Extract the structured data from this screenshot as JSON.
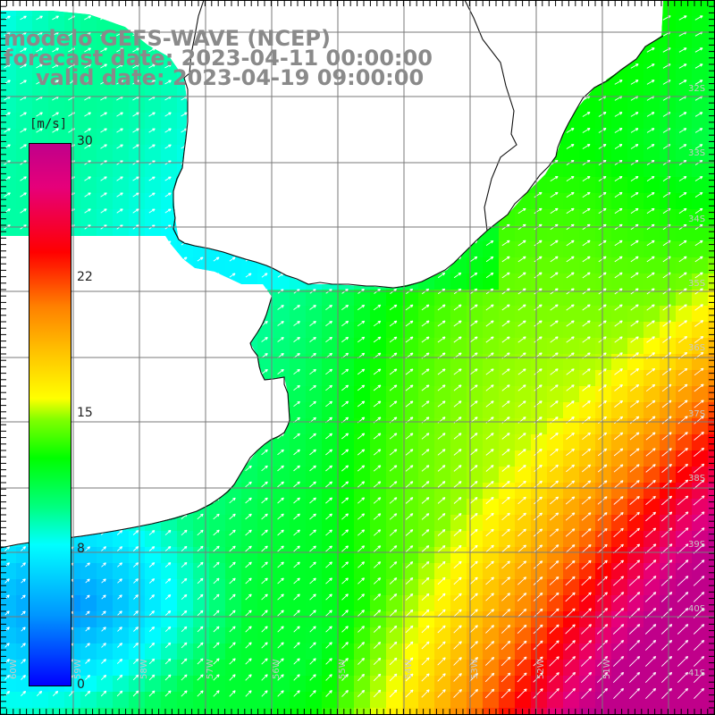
{
  "titles": {
    "line1": "modelo GEFS-WAVE (NCEP)",
    "line2": "forecast date: 2023-04-11 00:00:00",
    "line3": "valid date: 2023-04-19 09:00:00"
  },
  "colorbar": {
    "unit": "[m/s]",
    "ticks": [
      "30",
      "22",
      "15",
      "8",
      "0"
    ],
    "range": [
      0,
      30
    ],
    "colors": [
      "#0000ff",
      "#00ffff",
      "#00ff00",
      "#ffff00",
      "#ff0000",
      "#c0008a"
    ]
  },
  "grid": {
    "lat_labels": [
      "32S",
      "33S",
      "34S",
      "35S",
      "36S",
      "37S",
      "38S",
      "39S",
      "40S",
      "41S"
    ],
    "lon_labels": [
      "60W",
      "59W",
      "58W",
      "57W",
      "56W",
      "55W",
      "54W",
      "53W",
      "52W",
      "51W"
    ]
  },
  "field": {
    "variable": "wind speed",
    "max_region": "bottom-right",
    "min_region": "bottom-left",
    "arrow_direction": "from south-west"
  }
}
